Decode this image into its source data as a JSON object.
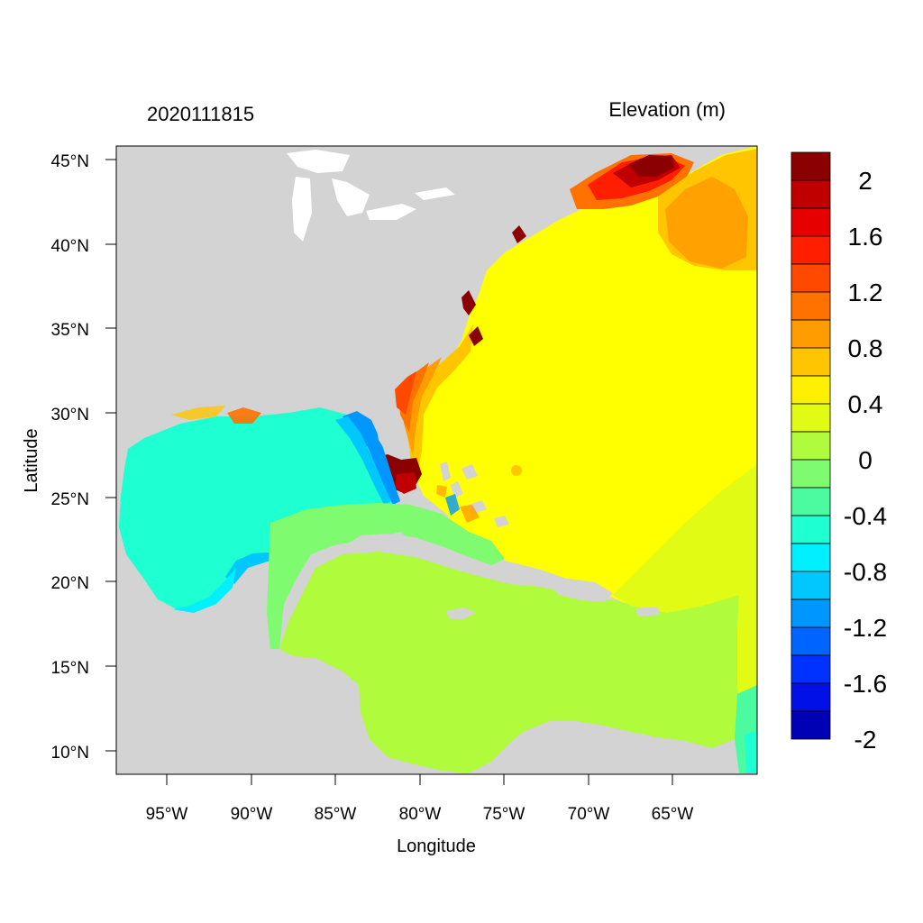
{
  "header": {
    "timestamp": "2020111815",
    "variable": "Elevation (m)"
  },
  "axes": {
    "xlabel": "Longitude",
    "ylabel": "Latitude",
    "x_ticks": [
      "95°W",
      "90°W",
      "85°W",
      "80°W",
      "75°W",
      "70°W",
      "65°W"
    ],
    "y_ticks": [
      "45°N",
      "40°N",
      "35°N",
      "30°N",
      "25°N",
      "20°N",
      "15°N",
      "10°N"
    ],
    "lon_range": [
      -98,
      -60.5
    ],
    "lat_range": [
      8.5,
      46
    ]
  },
  "colorbar": {
    "labels": [
      "2",
      "1.6",
      "1.2",
      "0.8",
      "0.4",
      "0",
      "-0.4",
      "-0.8",
      "-1.2",
      "-1.6",
      "-2"
    ],
    "colors": [
      "#8b0000",
      "#c00000",
      "#e60000",
      "#ff1e00",
      "#ff4800",
      "#ff7200",
      "#ff9c00",
      "#ffc600",
      "#ffef00",
      "#e2fb14",
      "#b0fb3c",
      "#7efb6e",
      "#4cfba0",
      "#1effd2",
      "#00f0ff",
      "#00c8ff",
      "#0096ff",
      "#0064ff",
      "#0032ff",
      "#0010e6",
      "#0000b4"
    ]
  },
  "colors": {
    "land": "#d3d3d3",
    "water_white": "#ffffff"
  }
}
